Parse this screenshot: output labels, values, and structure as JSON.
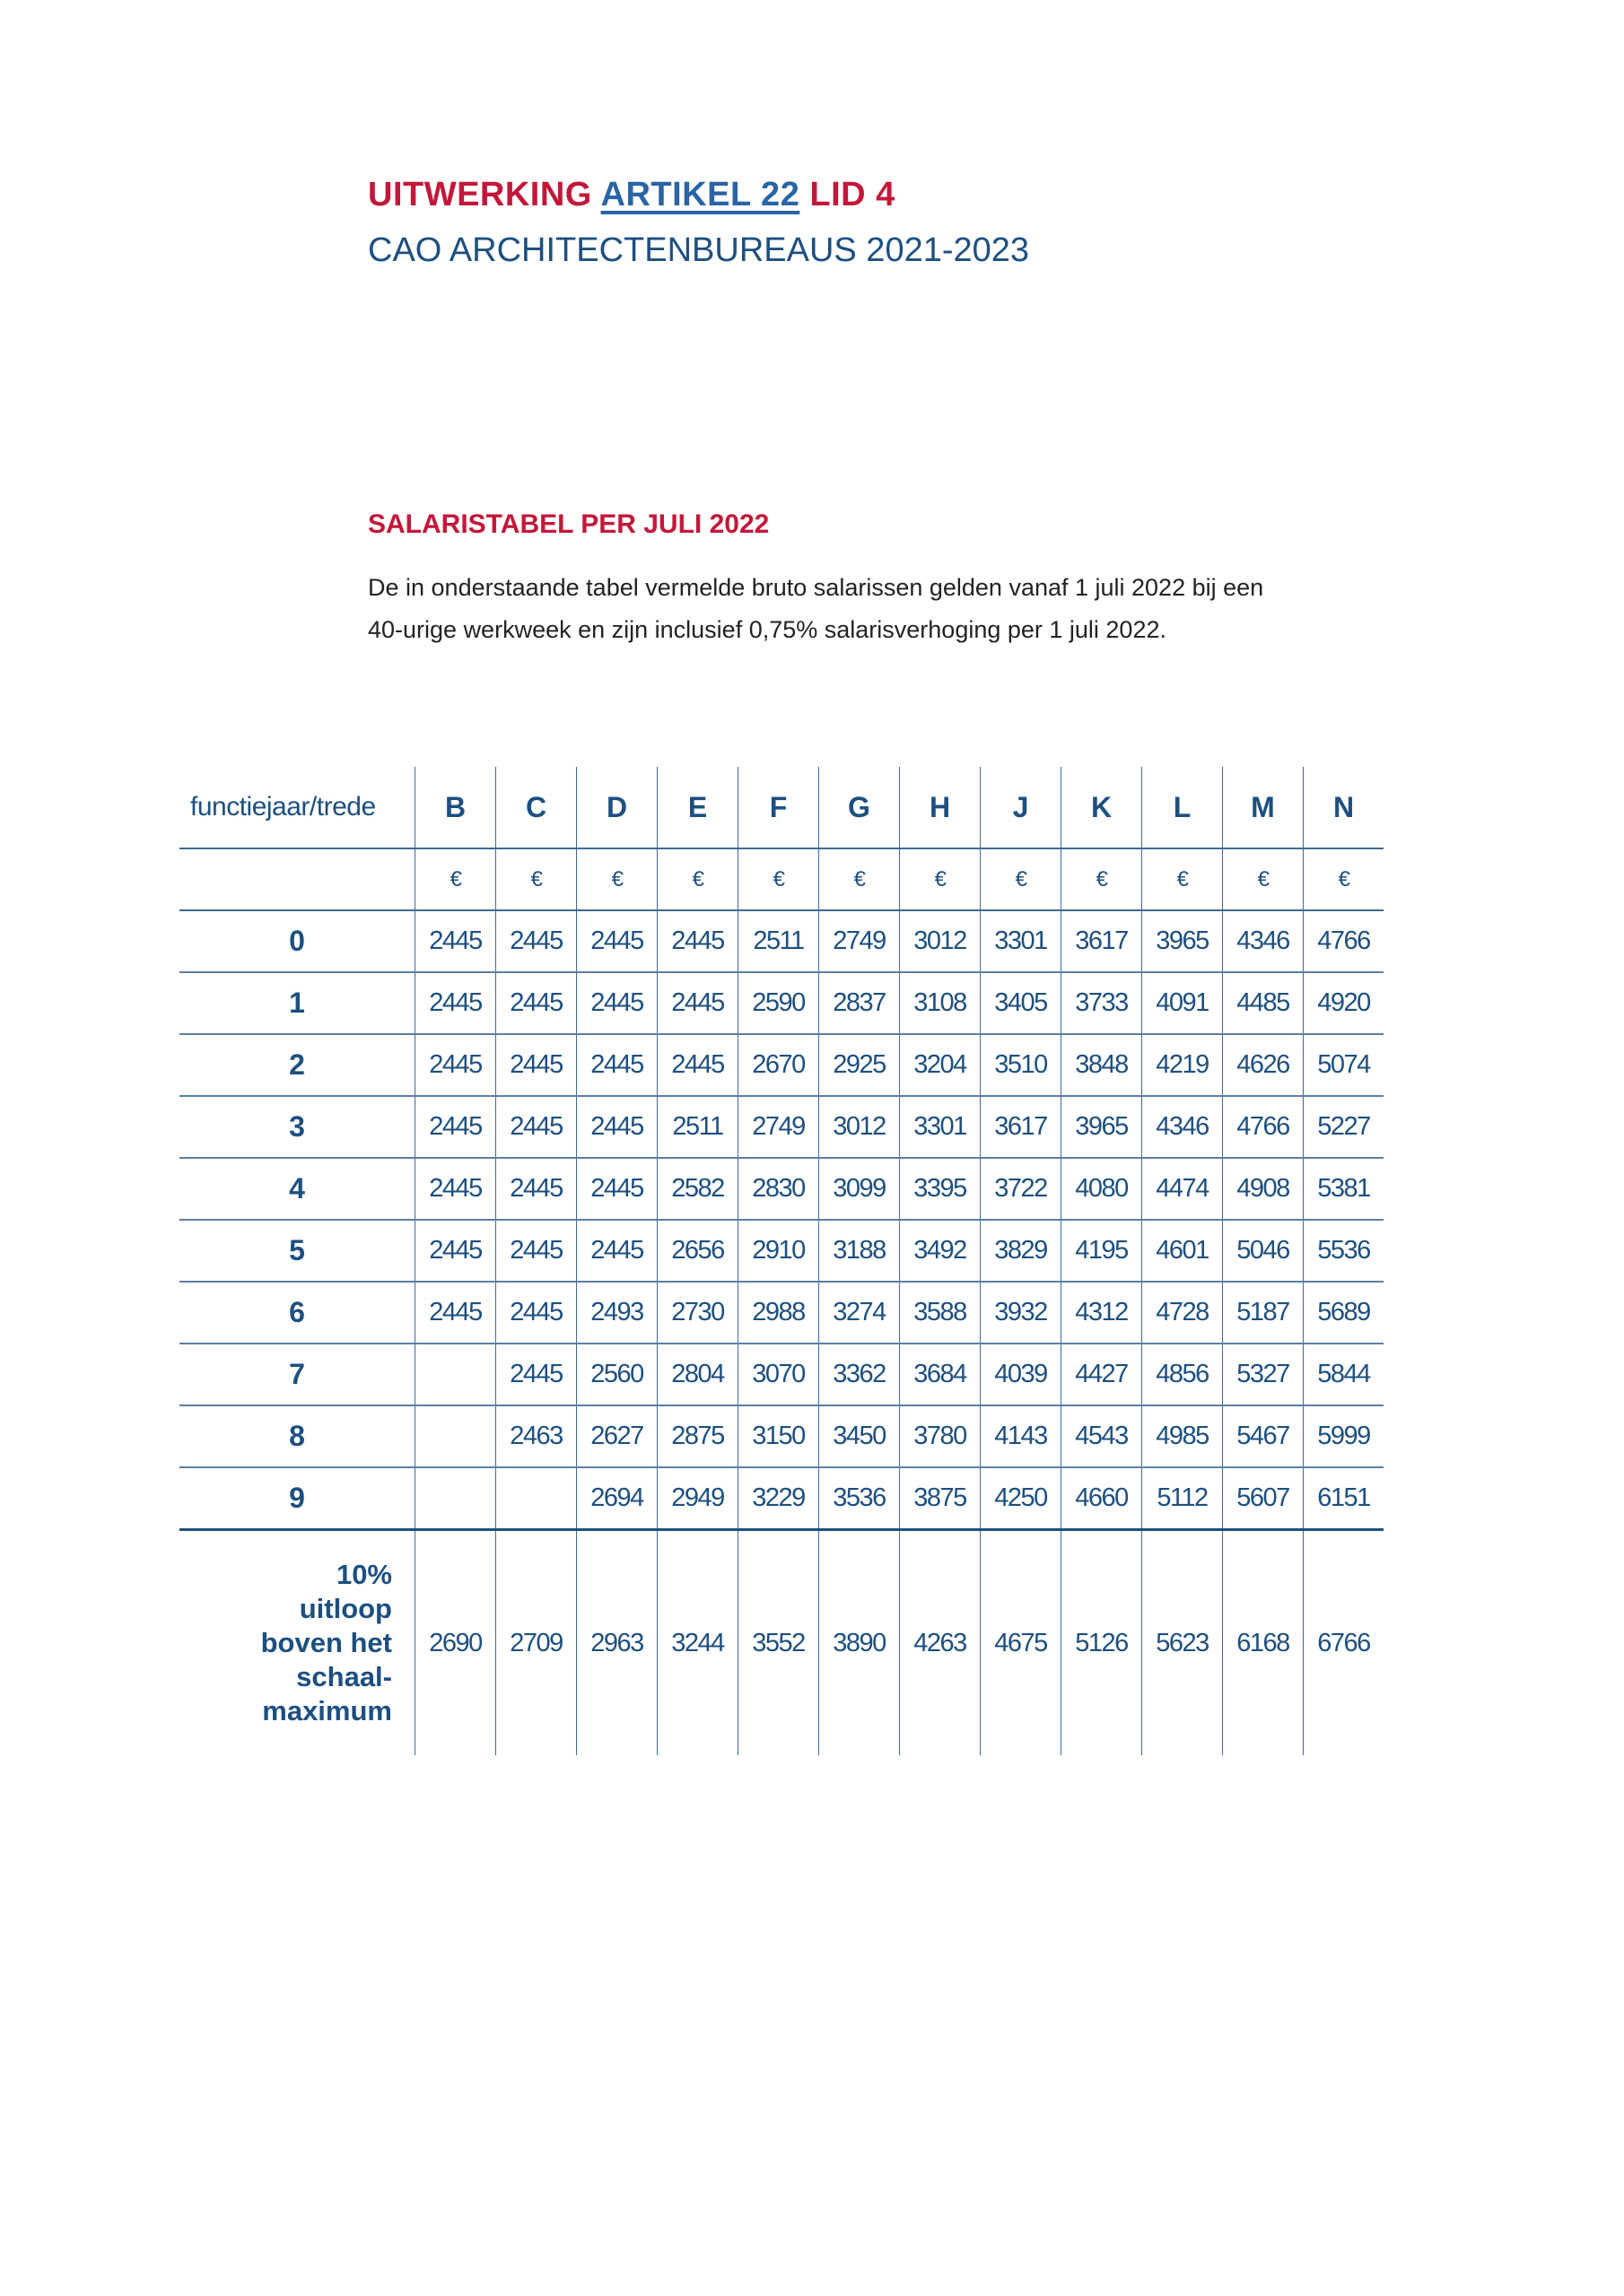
{
  "header": {
    "title_prefix": "UITWERKING",
    "title_link": "ARTIKEL 22",
    "title_suffix": "LID 4",
    "subtitle": "CAO ARCHITECTENBUREAUS 2021-2023"
  },
  "section": {
    "heading": "SALARISTABEL PER JULI 2022",
    "paragraph_line1": "De in onderstaande tabel vermelde bruto salarissen gelden vanaf 1 juli 2022 bij een",
    "paragraph_line2": "40-urige werkweek en zijn inclusief 0,75% salarisverhoging per 1 juli 2022."
  },
  "colors": {
    "red": "#c4173a",
    "blue": "#1d4f80",
    "link": "#2a64a6"
  },
  "table": {
    "corner_label": "functiejaar/trede",
    "columns": [
      "B",
      "C",
      "D",
      "E",
      "F",
      "G",
      "H",
      "J",
      "K",
      "L",
      "M",
      "N"
    ],
    "currency": "€",
    "rows": [
      {
        "label": "0",
        "values": [
          "2445",
          "2445",
          "2445",
          "2445",
          "2511",
          "2749",
          "3012",
          "3301",
          "3617",
          "3965",
          "4346",
          "4766"
        ]
      },
      {
        "label": "1",
        "values": [
          "2445",
          "2445",
          "2445",
          "2445",
          "2590",
          "2837",
          "3108",
          "3405",
          "3733",
          "4091",
          "4485",
          "4920"
        ]
      },
      {
        "label": "2",
        "values": [
          "2445",
          "2445",
          "2445",
          "2445",
          "2670",
          "2925",
          "3204",
          "3510",
          "3848",
          "4219",
          "4626",
          "5074"
        ]
      },
      {
        "label": "3",
        "values": [
          "2445",
          "2445",
          "2445",
          "2511",
          "2749",
          "3012",
          "3301",
          "3617",
          "3965",
          "4346",
          "4766",
          "5227"
        ]
      },
      {
        "label": "4",
        "values": [
          "2445",
          "2445",
          "2445",
          "2582",
          "2830",
          "3099",
          "3395",
          "3722",
          "4080",
          "4474",
          "4908",
          "5381"
        ]
      },
      {
        "label": "5",
        "values": [
          "2445",
          "2445",
          "2445",
          "2656",
          "2910",
          "3188",
          "3492",
          "3829",
          "4195",
          "4601",
          "5046",
          "5536"
        ]
      },
      {
        "label": "6",
        "values": [
          "2445",
          "2445",
          "2493",
          "2730",
          "2988",
          "3274",
          "3588",
          "3932",
          "4312",
          "4728",
          "5187",
          "5689"
        ]
      },
      {
        "label": "7",
        "values": [
          "",
          "2445",
          "2560",
          "2804",
          "3070",
          "3362",
          "3684",
          "4039",
          "4427",
          "4856",
          "5327",
          "5844"
        ]
      },
      {
        "label": "8",
        "values": [
          "",
          "2463",
          "2627",
          "2875",
          "3150",
          "3450",
          "3780",
          "4143",
          "4543",
          "4985",
          "5467",
          "5999"
        ]
      },
      {
        "label": "9",
        "values": [
          "",
          "",
          "2694",
          "2949",
          "3229",
          "3536",
          "3875",
          "4250",
          "4660",
          "5112",
          "5607",
          "6151"
        ]
      }
    ],
    "extra_row": {
      "label_lines": [
        "10%",
        "uitloop",
        "boven het",
        "schaal-",
        "maximum"
      ],
      "values": [
        "2690",
        "2709",
        "2963",
        "3244",
        "3552",
        "3890",
        "4263",
        "4675",
        "5126",
        "5623",
        "6168",
        "6766"
      ]
    }
  }
}
